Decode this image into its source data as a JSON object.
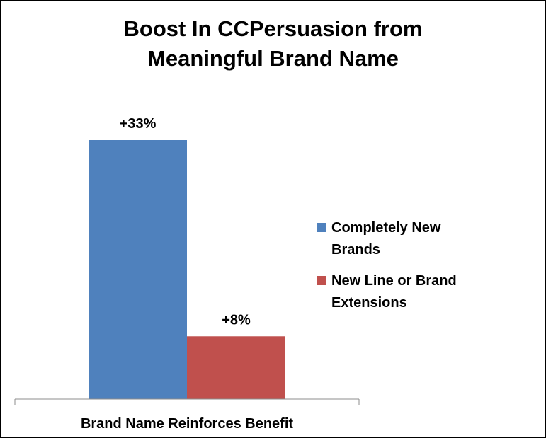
{
  "chart_data": {
    "type": "bar",
    "title_lines": [
      "Boost In CCPersuasion from",
      "Meaningful Brand Name"
    ],
    "categories": [
      "Brand Name Reinforces Benefit"
    ],
    "series": [
      {
        "name": "Completely New Brands",
        "values": [
          33
        ],
        "label": "+33%",
        "color": "#4f81bd"
      },
      {
        "name": "New Line or Brand Extensions",
        "values": [
          8
        ],
        "label": "+8%",
        "color": "#c0504d"
      }
    ],
    "ylim": [
      0,
      41
    ],
    "grid": false,
    "legend_position": "right"
  }
}
